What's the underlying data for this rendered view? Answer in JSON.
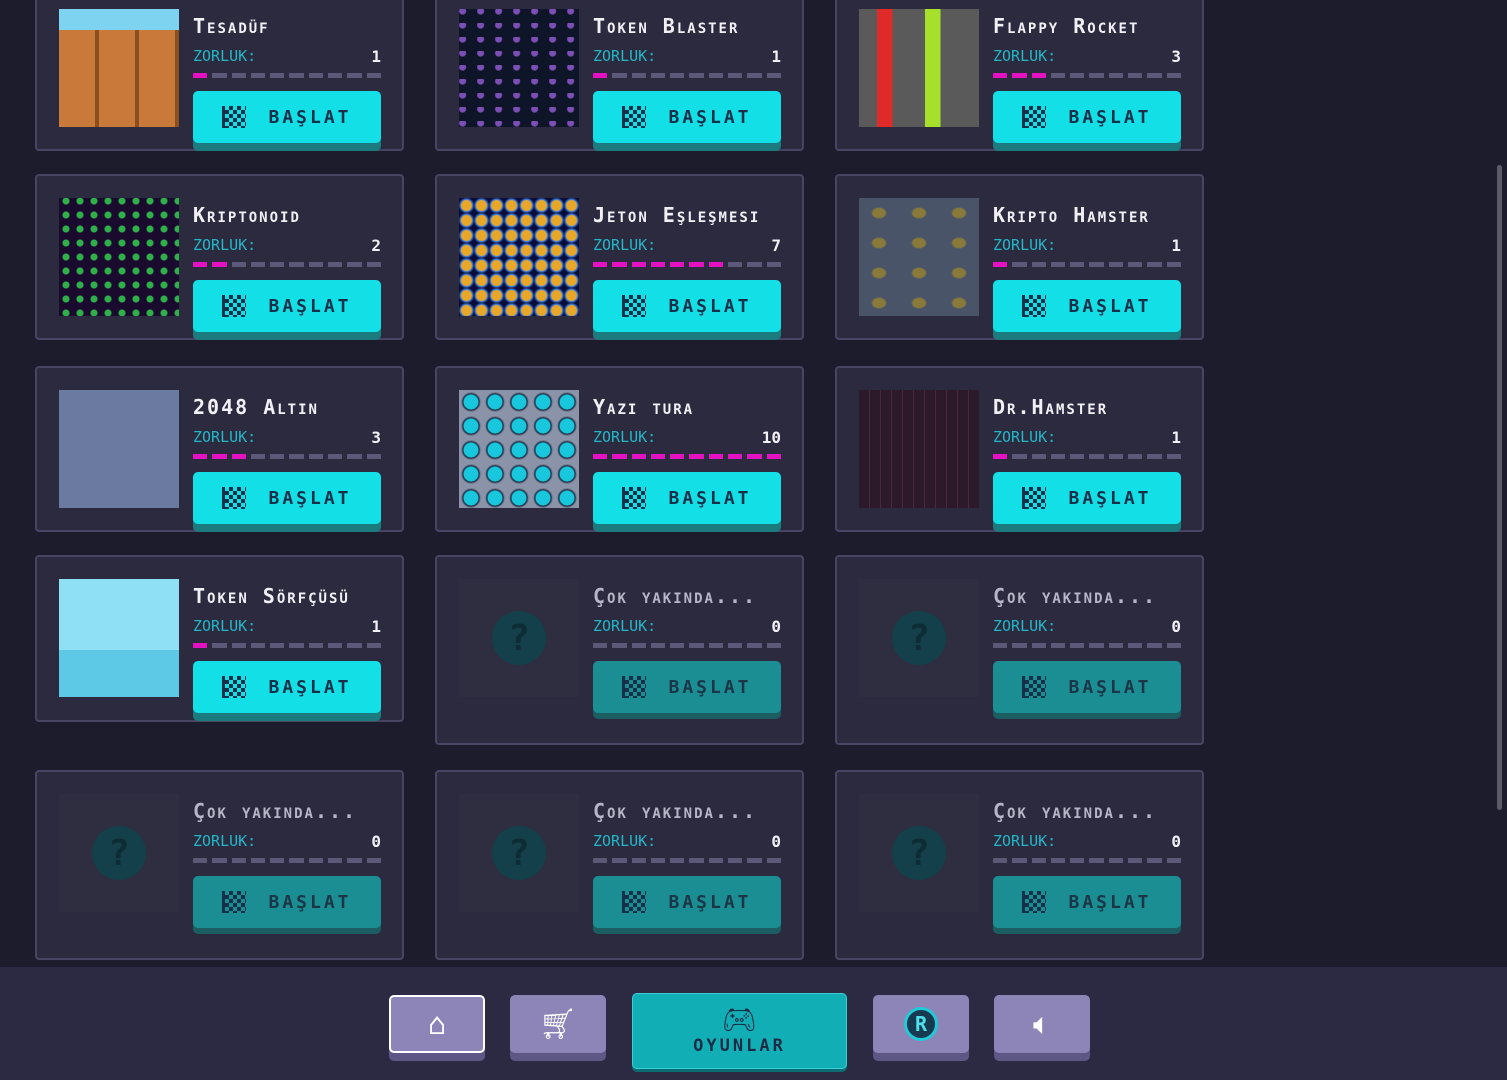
{
  "games": [
    {
      "title": "Tesadüf",
      "difficulty_label": "ZORLUK:",
      "difficulty": 1,
      "button": "BAŞLAT",
      "available": true,
      "thumb": "fence"
    },
    {
      "title": "Token Blaster",
      "difficulty_label": "ZORLUK:",
      "difficulty": 1,
      "button": "BAŞLAT",
      "available": true,
      "thumb": "space"
    },
    {
      "title": "Flappy Rocket",
      "difficulty_label": "ZORLUK:",
      "difficulty": 3,
      "button": "BAŞLAT",
      "available": true,
      "thumb": "flappy"
    },
    {
      "title": "Kriptonoid",
      "difficulty_label": "ZORLUK:",
      "difficulty": 2,
      "button": "BAŞLAT",
      "available": true,
      "thumb": "breakout"
    },
    {
      "title": "Jeton Eşleşmesi",
      "difficulty_label": "ZORLUK:",
      "difficulty": 7,
      "button": "BAŞLAT",
      "available": true,
      "thumb": "match"
    },
    {
      "title": "Kripto Hamster",
      "difficulty_label": "ZORLUK:",
      "difficulty": 1,
      "button": "BAŞLAT",
      "available": true,
      "thumb": "hamster"
    },
    {
      "title": "2048 Altın",
      "difficulty_label": "ZORLUK:",
      "difficulty": 3,
      "button": "BAŞLAT",
      "available": true,
      "thumb": "2048"
    },
    {
      "title": "Yazı tura",
      "difficulty_label": "ZORLUK:",
      "difficulty": 10,
      "button": "BAŞLAT",
      "available": true,
      "thumb": "coins"
    },
    {
      "title": "Dr.Hamster",
      "difficulty_label": "ZORLUK:",
      "difficulty": 1,
      "button": "BAŞLAT",
      "available": true,
      "thumb": "drhamster"
    },
    {
      "title": "Token Sörfçüsü",
      "difficulty_label": "ZORLUK:",
      "difficulty": 1,
      "button": "BAŞLAT",
      "available": true,
      "thumb": "surf"
    },
    {
      "title": "Çok yakında...",
      "difficulty_label": "ZORLUK:",
      "difficulty": 0,
      "button": "BAŞLAT",
      "available": false,
      "thumb": "question"
    },
    {
      "title": "Çok yakında...",
      "difficulty_label": "ZORLUK:",
      "difficulty": 0,
      "button": "BAŞLAT",
      "available": false,
      "thumb": "question"
    },
    {
      "title": "Çok yakında...",
      "difficulty_label": "ZORLUK:",
      "difficulty": 0,
      "button": "BAŞLAT",
      "available": false,
      "thumb": "question"
    },
    {
      "title": "Çok yakında...",
      "difficulty_label": "ZORLUK:",
      "difficulty": 0,
      "button": "BAŞLAT",
      "available": false,
      "thumb": "question"
    },
    {
      "title": "Çok yakında...",
      "difficulty_label": "ZORLUK:",
      "difficulty": 0,
      "button": "BAŞLAT",
      "available": false,
      "thumb": "question"
    }
  ],
  "max_difficulty": 10,
  "colors": {
    "accent": "#12e0e6",
    "difficulty_fill": "#e512c2",
    "difficulty_empty": "#5c5877",
    "nav": "#8d85b7",
    "nav_active": "#12aeb6"
  },
  "nav": {
    "home_icon": "home-icon",
    "shop_icon": "cart-icon",
    "games_icon": "gamepad-icon",
    "games_label": "OYUNLAR",
    "token_icon": "token-r-icon",
    "token_letter": "R",
    "sound_icon": "speaker-icon"
  }
}
